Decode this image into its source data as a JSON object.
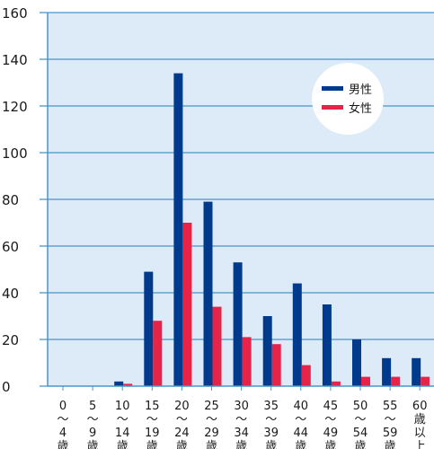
{
  "chart_data": {
    "type": "bar",
    "title": "",
    "xlabel": "",
    "ylabel": "",
    "ylim": [
      0,
      160
    ],
    "yticks": [
      0,
      20,
      40,
      60,
      80,
      100,
      120,
      140,
      160
    ],
    "grid": true,
    "legend_position": "top-right",
    "categories": [
      [
        "0",
        "〜",
        "4",
        "歳"
      ],
      [
        "5",
        "〜",
        "9",
        "歳"
      ],
      [
        "10",
        "〜",
        "14",
        "歳"
      ],
      [
        "15",
        "〜",
        "19",
        "歳"
      ],
      [
        "20",
        "〜",
        "24",
        "歳"
      ],
      [
        "25",
        "〜",
        "29",
        "歳"
      ],
      [
        "30",
        "〜",
        "34",
        "歳"
      ],
      [
        "35",
        "〜",
        "39",
        "歳"
      ],
      [
        "40",
        "〜",
        "44",
        "歳"
      ],
      [
        "45",
        "〜",
        "49",
        "歳"
      ],
      [
        "50",
        "〜",
        "54",
        "歳"
      ],
      [
        "55",
        "〜",
        "59",
        "歳"
      ],
      [
        "60",
        "歳",
        "以",
        "上"
      ]
    ],
    "series": [
      {
        "name": "男性",
        "color": "#003a8c",
        "values": [
          0,
          0,
          2,
          49,
          134,
          79,
          53,
          30,
          44,
          35,
          20,
          12,
          12
        ]
      },
      {
        "name": "女性",
        "color": "#e6244a",
        "values": [
          0,
          0,
          1,
          28,
          70,
          34,
          21,
          18,
          9,
          2,
          4,
          4,
          4
        ]
      }
    ],
    "colors": {
      "plot_background": "#dcebf7",
      "axis": "#4a95c9",
      "grid": "#4a95c9",
      "legend_background": "#ffffff"
    }
  }
}
